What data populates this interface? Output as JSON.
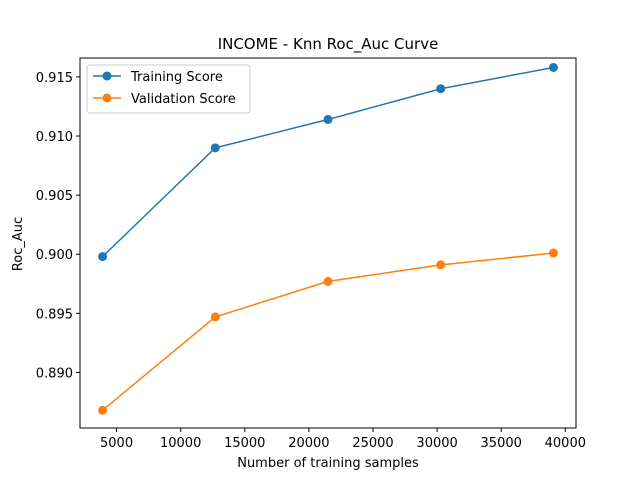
{
  "chart_data": {
    "type": "line",
    "title": "INCOME - Knn Roc_Auc Curve",
    "xlabel": "Number of training samples",
    "ylabel": "Roc_Auc",
    "x": [
      3907,
      12699,
      21490,
      30281,
      39073
    ],
    "xlim": [
      2148,
      40832
    ],
    "ylim": [
      0.8853,
      0.9166
    ],
    "xticks": [
      5000,
      10000,
      15000,
      20000,
      25000,
      30000,
      35000,
      40000
    ],
    "xtick_labels": [
      "5000",
      "10000",
      "15000",
      "20000",
      "25000",
      "30000",
      "35000",
      "40000"
    ],
    "yticks": [
      0.89,
      0.895,
      0.9,
      0.905,
      0.91,
      0.915
    ],
    "ytick_labels": [
      "0.890",
      "0.895",
      "0.900",
      "0.905",
      "0.910",
      "0.915"
    ],
    "grid": false,
    "legend_position": "upper-left",
    "series": [
      {
        "name": "Training Score",
        "color": "#1f77b4",
        "marker": "circle",
        "values": [
          0.8998,
          0.909,
          0.9114,
          0.914,
          0.9158
        ]
      },
      {
        "name": "Validation Score",
        "color": "#ff7f0e",
        "marker": "circle",
        "values": [
          0.8868,
          0.8947,
          0.8977,
          0.8991,
          0.9001
        ]
      }
    ]
  }
}
